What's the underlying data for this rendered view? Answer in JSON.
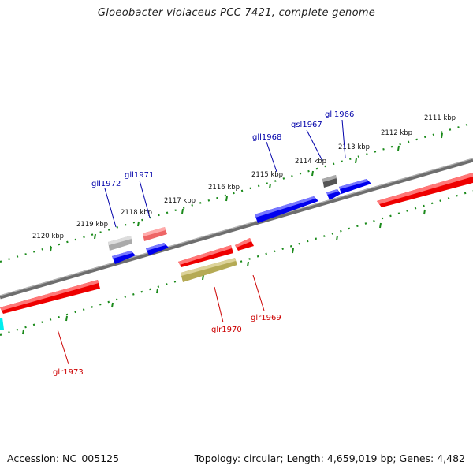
{
  "header": {
    "title": "Gloeobacter violaceus PCC 7421, complete genome"
  },
  "footer": {
    "accession": "Accession: NC_005125",
    "summary": "Topology: circular; Length: 4,659,019 bp; Genes: 4,482"
  },
  "colors": {
    "forward_label": "#0000aa",
    "reverse_label": "#cc0000",
    "scale_dots": "#1a8a1a",
    "backbone": "#808080"
  },
  "tick_labels": [
    "2111 kbp",
    "2112 kbp",
    "2113 kbp",
    "2114 kbp",
    "2115 kbp",
    "2116 kbp",
    "2117 kbp",
    "2118 kbp",
    "2119 kbp",
    "2120 kbp"
  ],
  "gene_labels": {
    "gll1966": "gll1966",
    "gsl1967": "gsl1967",
    "gll1968": "gll1968",
    "gll1971": "gll1971",
    "gll1972": "gll1972",
    "glr1969": "glr1969",
    "glr1970": "glr1970",
    "glr1973": "glr1973"
  }
}
